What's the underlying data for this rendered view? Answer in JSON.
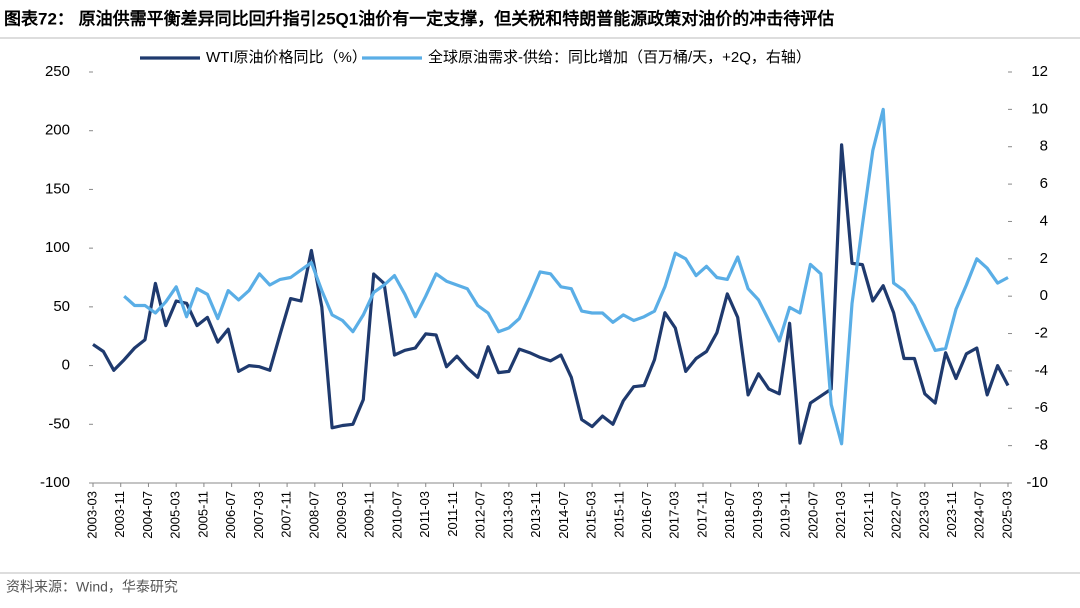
{
  "title": "图表72：  原油供需平衡差异同比回升指引25Q1油价有一定支撑，但关税和特朗普能源政策对油价的冲击待评估",
  "source": "资料来源：Wind，华泰研究",
  "chart_data": {
    "type": "line",
    "x": [
      "2003-03",
      "2003-06",
      "2003-09",
      "2003-12",
      "2004-03",
      "2004-06",
      "2004-09",
      "2004-12",
      "2005-03",
      "2005-06",
      "2005-09",
      "2005-12",
      "2006-03",
      "2006-06",
      "2006-09",
      "2006-12",
      "2007-03",
      "2007-06",
      "2007-09",
      "2007-12",
      "2008-03",
      "2008-06",
      "2008-09",
      "2008-12",
      "2009-03",
      "2009-06",
      "2009-09",
      "2009-12",
      "2010-03",
      "2010-06",
      "2010-09",
      "2010-12",
      "2011-03",
      "2011-06",
      "2011-09",
      "2011-12",
      "2012-03",
      "2012-06",
      "2012-09",
      "2012-12",
      "2013-03",
      "2013-06",
      "2013-09",
      "2013-12",
      "2014-03",
      "2014-06",
      "2014-09",
      "2014-12",
      "2015-03",
      "2015-06",
      "2015-09",
      "2015-12",
      "2016-03",
      "2016-06",
      "2016-09",
      "2016-12",
      "2017-03",
      "2017-06",
      "2017-09",
      "2017-12",
      "2018-03",
      "2018-06",
      "2018-09",
      "2018-12",
      "2019-03",
      "2019-06",
      "2019-09",
      "2019-12",
      "2020-03",
      "2020-06",
      "2020-09",
      "2020-12",
      "2021-03",
      "2021-06",
      "2021-09",
      "2021-12",
      "2022-03",
      "2022-06",
      "2022-09",
      "2022-12",
      "2023-03",
      "2023-06",
      "2023-09",
      "2023-12",
      "2024-03",
      "2024-06",
      "2024-09",
      "2024-12",
      "2025-03"
    ],
    "xlim": [
      "2003-03",
      "2025-03"
    ],
    "xticks": [
      "2003-03",
      "2003-11",
      "2004-07",
      "2005-03",
      "2005-11",
      "2006-07",
      "2007-03",
      "2007-11",
      "2008-07",
      "2009-03",
      "2009-11",
      "2010-07",
      "2011-03",
      "2011-11",
      "2012-07",
      "2013-03",
      "2013-11",
      "2014-07",
      "2015-03",
      "2015-11",
      "2016-07",
      "2017-03",
      "2017-11",
      "2018-07",
      "2019-03",
      "2019-11",
      "2020-07",
      "2021-03",
      "2021-11",
      "2022-07",
      "2023-03",
      "2023-11",
      "2024-07",
      "2025-03"
    ],
    "ylim": [
      -100,
      250
    ],
    "yticks": [
      250,
      200,
      150,
      100,
      50,
      0,
      -50,
      -100
    ],
    "y2lim": [
      -10,
      12
    ],
    "y2ticks": [
      12,
      10,
      8,
      6,
      4,
      2,
      0,
      -2,
      -4,
      -6,
      -8,
      -10
    ],
    "legend": "top",
    "series": [
      {
        "name": "WTI原油价格同比（%）",
        "color": "#1f3a6e",
        "values": [
          18,
          12,
          -4,
          5,
          15,
          22,
          70,
          34,
          55,
          53,
          34,
          41,
          20,
          31,
          -5,
          0,
          -1,
          -4,
          27,
          57,
          55,
          98,
          50,
          -53,
          -51,
          -50,
          -29,
          78,
          70,
          9,
          13,
          15,
          27,
          26,
          -1,
          8,
          -2,
          -10,
          16,
          -6,
          -5,
          14,
          11,
          7,
          4,
          9,
          -10,
          -46,
          -52,
          -43,
          -50,
          -30,
          -18,
          -17,
          5,
          45,
          32,
          -5,
          6,
          12,
          28,
          61,
          41,
          -25,
          -7,
          -20,
          -24,
          36,
          -66,
          -32,
          -26,
          -20,
          188,
          87,
          86,
          55,
          68,
          45,
          6,
          6,
          -24,
          -32,
          11,
          -11,
          10,
          15,
          -25,
          0,
          -17
        ]
      },
      {
        "name": "全球原油需求-供给：同比增加（百万桶/天，+2Q，右轴）",
        "color": "#5aaee6",
        "axis": "y2",
        "values": [
          null,
          null,
          null,
          0,
          -0.5,
          -0.5,
          -0.9,
          -0.3,
          0.5,
          -1.1,
          0.4,
          0.1,
          -1.2,
          0.3,
          -0.2,
          0.3,
          1.2,
          0.6,
          0.9,
          1.0,
          1.4,
          1.8,
          0.3,
          -1.0,
          -1.3,
          -1.9,
          -1.0,
          0.2,
          0.6,
          1.1,
          0.1,
          -1.1,
          0,
          1.2,
          0.8,
          0.6,
          0.4,
          -0.5,
          -0.9,
          -1.9,
          -1.7,
          -1.2,
          0,
          1.3,
          1.2,
          0.5,
          0.4,
          -0.8,
          -0.9,
          -0.9,
          -1.4,
          -1.0,
          -1.3,
          -1.1,
          -0.8,
          0.5,
          2.3,
          2.0,
          1.1,
          1.6,
          1.0,
          0.9,
          2.1,
          0.4,
          -0.2,
          -1.3,
          -2.4,
          -0.6,
          -0.9,
          1.7,
          1.2,
          -5.8,
          -7.9,
          -0.4,
          3.8,
          7.8,
          10.0,
          0.7,
          0.3,
          -0.5,
          -1.7,
          -2.9,
          -2.8,
          -0.7,
          0.6,
          2.0,
          1.5,
          0.7,
          1.0
        ]
      }
    ]
  }
}
